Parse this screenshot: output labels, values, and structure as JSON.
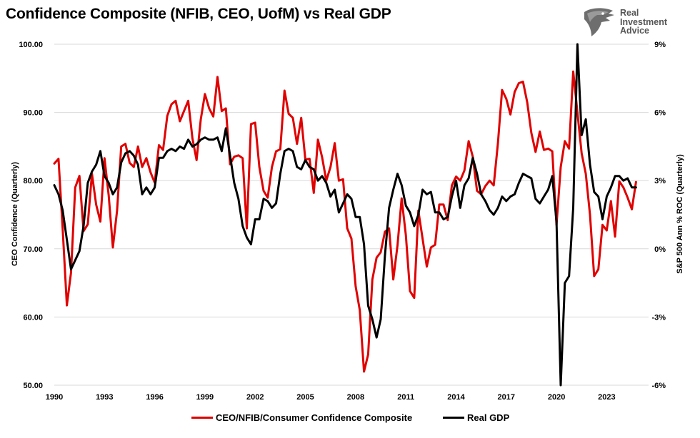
{
  "header": {
    "title": "Confidence Composite (NFIB, CEO, UofM) vs Real GDP"
  },
  "logo": {
    "line1": "Real",
    "line2": "Investment",
    "line3": "Advice",
    "icon": "eagle-head-icon"
  },
  "colors": {
    "composite": "#e00000",
    "gdp": "#000000",
    "grid": "#d9d9d9"
  },
  "chart_data": {
    "type": "line",
    "title": "Confidence Composite (NFIB, CEO, UofM) vs Real GDP",
    "xlabel": "",
    "ylabel_left": "CEO Confidence (Quarterly)",
    "ylabel_right": "S&P 500 Ann % ROC (Quarterly)",
    "xlim": [
      1990,
      2025.5
    ],
    "ylim_left": [
      50,
      100
    ],
    "ylim_right": [
      -6,
      9
    ],
    "grid": "horizontal",
    "legend_position": "bottom",
    "x_tick_labels": [
      "1990",
      "1993",
      "1996",
      "1999",
      "2002",
      "2005",
      "2008",
      "2011",
      "2014",
      "2017",
      "2020",
      "2023"
    ],
    "x_tick_values": [
      1990,
      1993,
      1996,
      1999,
      2002,
      2005,
      2008,
      2011,
      2014,
      2017,
      2020,
      2023
    ],
    "y_left_tick_labels": [
      "50.00",
      "60.00",
      "70.00",
      "80.00",
      "90.00",
      "100.00"
    ],
    "y_left_tick_values": [
      50,
      60,
      70,
      80,
      90,
      100
    ],
    "y_right_tick_labels": [
      "-6%",
      "-3%",
      "0%",
      "3%",
      "6%",
      "9%"
    ],
    "y_right_tick_values": [
      -6,
      -3,
      0,
      3,
      6,
      9
    ],
    "series": [
      {
        "name": "CEO/NFIB/Consumer Confidence Composite",
        "axis": "left",
        "color": "#e00000",
        "x": [
          1990.0,
          1990.25,
          1990.5,
          1990.75,
          1991.0,
          1991.25,
          1991.5,
          1991.75,
          1992.0,
          1992.25,
          1992.5,
          1992.75,
          1993.0,
          1993.25,
          1993.5,
          1993.75,
          1994.0,
          1994.25,
          1994.5,
          1994.75,
          1995.0,
          1995.25,
          1995.5,
          1995.75,
          1996.0,
          1996.25,
          1996.5,
          1996.75,
          1997.0,
          1997.25,
          1997.5,
          1997.75,
          1998.0,
          1998.25,
          1998.5,
          1998.75,
          1999.0,
          1999.25,
          1999.5,
          1999.75,
          2000.0,
          2000.25,
          2000.5,
          2000.75,
          2001.0,
          2001.25,
          2001.5,
          2001.75,
          2002.0,
          2002.25,
          2002.5,
          2002.75,
          2003.0,
          2003.25,
          2003.5,
          2003.75,
          2004.0,
          2004.25,
          2004.5,
          2004.75,
          2005.0,
          2005.25,
          2005.5,
          2005.75,
          2006.0,
          2006.25,
          2006.5,
          2006.75,
          2007.0,
          2007.25,
          2007.5,
          2007.75,
          2008.0,
          2008.25,
          2008.5,
          2008.75,
          2009.0,
          2009.25,
          2009.5,
          2009.75,
          2010.0,
          2010.25,
          2010.5,
          2010.75,
          2011.0,
          2011.25,
          2011.5,
          2011.75,
          2012.0,
          2012.25,
          2012.5,
          2012.75,
          2013.0,
          2013.25,
          2013.5,
          2013.75,
          2014.0,
          2014.25,
          2014.5,
          2014.75,
          2015.0,
          2015.25,
          2015.5,
          2015.75,
          2016.0,
          2016.25,
          2016.5,
          2016.75,
          2017.0,
          2017.25,
          2017.5,
          2017.75,
          2018.0,
          2018.25,
          2018.5,
          2018.75,
          2019.0,
          2019.25,
          2019.5,
          2019.75,
          2020.0,
          2020.25,
          2020.5,
          2020.75,
          2021.0,
          2021.25,
          2021.5,
          2021.75,
          2022.0,
          2022.25,
          2022.5,
          2022.75,
          2023.0,
          2023.25,
          2023.5,
          2023.75,
          2024.0,
          2024.25,
          2024.5,
          2024.75
        ],
        "values": [
          82.5,
          83.2,
          73.0,
          61.7,
          66.5,
          79.0,
          80.7,
          72.6,
          73.6,
          81.0,
          76.5,
          74.0,
          83.3,
          77.8,
          70.2,
          75.6,
          85.0,
          85.4,
          82.6,
          82.0,
          85.0,
          82.0,
          83.3,
          81.2,
          79.7,
          85.2,
          84.5,
          89.5,
          91.2,
          91.7,
          88.7,
          90.2,
          91.7,
          86.2,
          83.0,
          89.0,
          92.7,
          90.6,
          89.4,
          95.2,
          90.2,
          90.6,
          82.4,
          83.5,
          83.7,
          83.3,
          73.0,
          88.3,
          88.5,
          82.0,
          78.5,
          77.5,
          82.0,
          84.3,
          84.6,
          93.2,
          89.8,
          89.2,
          85.4,
          89.2,
          83.1,
          83.2,
          78.2,
          86.0,
          83.4,
          80.0,
          82.0,
          85.5,
          80.0,
          80.2,
          73.0,
          71.5,
          64.5,
          61.0,
          52.0,
          54.5,
          65.5,
          68.7,
          69.5,
          72.5,
          73.0,
          65.5,
          70.5,
          77.4,
          72.0,
          63.8,
          62.8,
          75.6,
          71.5,
          67.4,
          70.2,
          70.6,
          76.5,
          76.5,
          74.2,
          79.3,
          80.6,
          80.0,
          81.5,
          85.8,
          83.5,
          78.5,
          78.0,
          79.2,
          80.0,
          79.3,
          85.5,
          93.3,
          92.0,
          89.7,
          93.0,
          94.3,
          94.5,
          91.5,
          87.0,
          84.2,
          87.2,
          84.5,
          84.7,
          84.3,
          73.5,
          82.0,
          85.8,
          84.7,
          96.0,
          90.0,
          84.0,
          81.0,
          75.0,
          66.0,
          67.0,
          73.5,
          72.7,
          77.0,
          71.8,
          79.9,
          79.0,
          77.5,
          75.8,
          79.8
        ]
      },
      {
        "name": "Real GDP",
        "axis": "right",
        "color": "#000000",
        "x": [
          1990.0,
          1990.25,
          1990.5,
          1990.75,
          1991.0,
          1991.25,
          1991.5,
          1991.75,
          1992.0,
          1992.25,
          1992.5,
          1992.75,
          1993.0,
          1993.25,
          1993.5,
          1993.75,
          1994.0,
          1994.25,
          1994.5,
          1994.75,
          1995.0,
          1995.25,
          1995.5,
          1995.75,
          1996.0,
          1996.25,
          1996.5,
          1996.75,
          1997.0,
          1997.25,
          1997.5,
          1997.75,
          1998.0,
          1998.25,
          1998.5,
          1998.75,
          1999.0,
          1999.25,
          1999.5,
          1999.75,
          2000.0,
          2000.25,
          2000.5,
          2000.75,
          2001.0,
          2001.25,
          2001.5,
          2001.75,
          2002.0,
          2002.25,
          2002.5,
          2002.75,
          2003.0,
          2003.25,
          2003.5,
          2003.75,
          2004.0,
          2004.25,
          2004.5,
          2004.75,
          2005.0,
          2005.25,
          2005.5,
          2005.75,
          2006.0,
          2006.25,
          2006.5,
          2006.75,
          2007.0,
          2007.25,
          2007.5,
          2007.75,
          2008.0,
          2008.25,
          2008.5,
          2008.75,
          2009.0,
          2009.25,
          2009.5,
          2009.75,
          2010.0,
          2010.25,
          2010.5,
          2010.75,
          2011.0,
          2011.25,
          2011.5,
          2011.75,
          2012.0,
          2012.25,
          2012.5,
          2012.75,
          2013.0,
          2013.25,
          2013.5,
          2013.75,
          2014.0,
          2014.25,
          2014.5,
          2014.75,
          2015.0,
          2015.25,
          2015.5,
          2015.75,
          2016.0,
          2016.25,
          2016.5,
          2016.75,
          2017.0,
          2017.25,
          2017.5,
          2017.75,
          2018.0,
          2018.25,
          2018.5,
          2018.75,
          2019.0,
          2019.25,
          2019.5,
          2019.75,
          2020.0,
          2020.25,
          2020.5,
          2020.75,
          2021.0,
          2021.25,
          2021.5,
          2021.75,
          2022.0,
          2022.25,
          2022.5,
          2022.75,
          2023.0,
          2023.25,
          2023.5,
          2023.75,
          2024.0,
          2024.25,
          2024.5,
          2024.75
        ],
        "values": [
          2.8,
          2.4,
          1.7,
          0.4,
          -0.9,
          -0.5,
          -0.1,
          1.0,
          2.9,
          3.4,
          3.7,
          4.3,
          3.2,
          2.9,
          2.4,
          2.7,
          3.8,
          4.2,
          4.3,
          4.1,
          3.7,
          2.4,
          2.7,
          2.4,
          2.7,
          4.0,
          4.0,
          4.3,
          4.4,
          4.3,
          4.5,
          4.4,
          4.8,
          4.5,
          4.6,
          4.8,
          4.9,
          4.8,
          4.8,
          4.9,
          4.3,
          5.3,
          4.1,
          2.9,
          2.2,
          1.0,
          0.5,
          0.2,
          1.3,
          1.3,
          2.2,
          2.1,
          1.8,
          2.0,
          3.3,
          4.3,
          4.4,
          4.3,
          3.6,
          3.5,
          3.9,
          3.6,
          3.5,
          3.0,
          3.2,
          2.9,
          2.3,
          2.6,
          1.6,
          2.0,
          2.4,
          2.2,
          1.4,
          1.4,
          0.2,
          -2.5,
          -3.1,
          -3.9,
          -3.1,
          -0.3,
          1.8,
          2.6,
          3.3,
          2.8,
          1.9,
          1.6,
          1.0,
          1.5,
          2.6,
          2.4,
          2.5,
          1.6,
          1.6,
          1.3,
          1.4,
          2.3,
          3.0,
          1.8,
          2.8,
          3.1,
          4.0,
          3.3,
          2.4,
          2.1,
          1.7,
          1.5,
          1.8,
          2.3,
          2.1,
          2.3,
          2.4,
          2.9,
          3.3,
          3.2,
          3.1,
          2.2,
          2.0,
          2.3,
          2.6,
          3.2,
          1.2,
          -6.0,
          -1.5,
          -1.2,
          1.8,
          9.0,
          5.0,
          5.7,
          3.7,
          2.5,
          2.3,
          1.3,
          2.3,
          2.7,
          3.2,
          3.2,
          3.0,
          3.1,
          2.7,
          2.7
        ]
      }
    ]
  },
  "legend": {
    "composite_label": "CEO/NFIB/Consumer Confidence Composite",
    "gdp_label": "Real GDP"
  }
}
